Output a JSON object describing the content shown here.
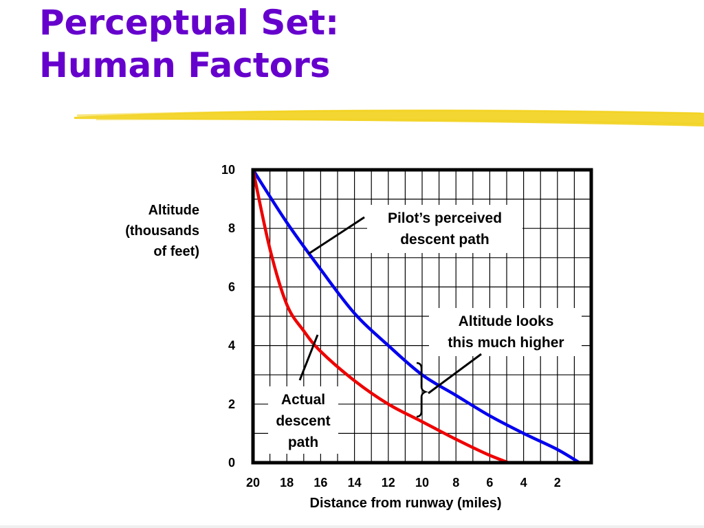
{
  "slide": {
    "title_line1": "Perceptual Set:",
    "title_line2": "Human Factors",
    "title_color": "#6600cc",
    "highlight_color": "#f2d11c"
  },
  "chart_data": {
    "type": "line",
    "xlabel": "Distance from runway (miles)",
    "ylabel_lines": [
      "Altitude",
      "(thousands",
      "of feet)"
    ],
    "x_ticks": [
      20,
      18,
      16,
      14,
      12,
      10,
      8,
      6,
      4,
      2
    ],
    "y_ticks": [
      0,
      2,
      4,
      6,
      8,
      10
    ],
    "xlim": [
      20,
      0
    ],
    "ylim": [
      0,
      10
    ],
    "grid": true,
    "series": [
      {
        "name": "Pilot’s perceived descent path",
        "color": "#0000ee",
        "x": [
          20,
          18,
          16,
          14,
          12,
          10,
          8,
          6,
          4,
          2,
          0.7
        ],
        "y": [
          10,
          8.2,
          6.6,
          5.1,
          4.0,
          3.0,
          2.3,
          1.6,
          1.0,
          0.45,
          0
        ]
      },
      {
        "name": "Actual descent path",
        "color": "#ee0000",
        "x": [
          20,
          19,
          18,
          17,
          16,
          14,
          12,
          10,
          8,
          6.2,
          4.9
        ],
        "y": [
          10,
          7.3,
          5.4,
          4.5,
          3.8,
          2.8,
          2.0,
          1.4,
          0.8,
          0.3,
          0
        ]
      }
    ],
    "annotations": [
      {
        "id": "perceived",
        "lines": [
          "Pilot’s perceived",
          "descent path"
        ]
      },
      {
        "id": "higher",
        "lines": [
          "Altitude looks",
          "this much higher"
        ]
      },
      {
        "id": "actual",
        "lines": [
          "Actual",
          "descent",
          "path"
        ]
      }
    ]
  }
}
